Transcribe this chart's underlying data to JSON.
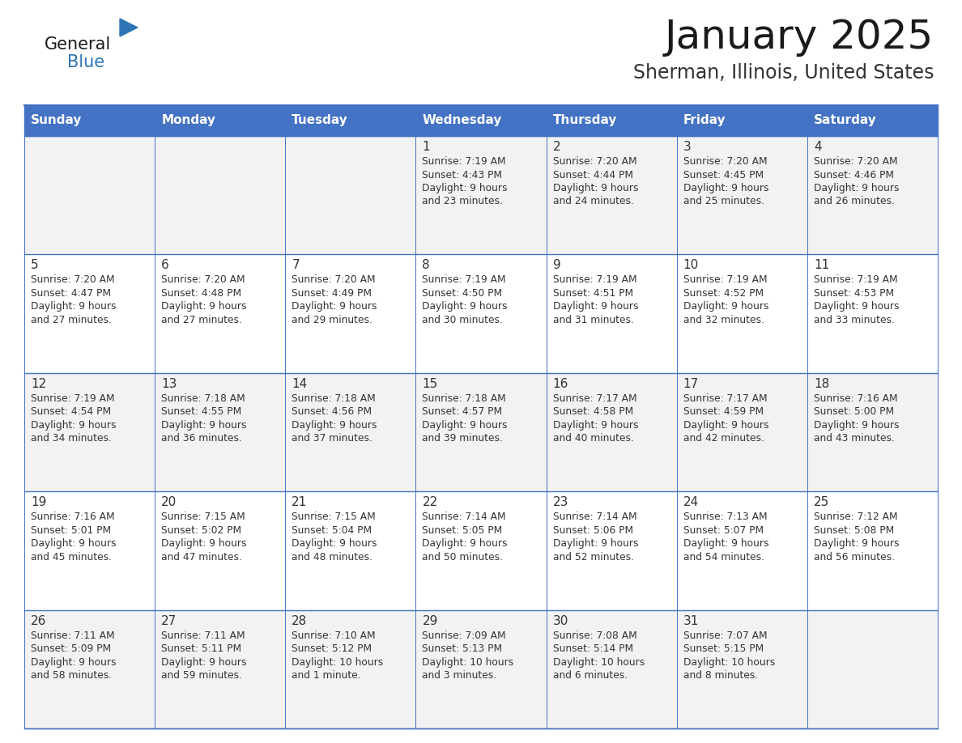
{
  "title": "January 2025",
  "subtitle": "Sherman, Illinois, United States",
  "header_bg_color": "#4472C4",
  "header_text_color": "#FFFFFF",
  "cell_bg_even": "#F2F2F2",
  "cell_bg_odd": "#FFFFFF",
  "day_headers": [
    "Sunday",
    "Monday",
    "Tuesday",
    "Wednesday",
    "Thursday",
    "Friday",
    "Saturday"
  ],
  "title_color": "#1a1a1a",
  "subtitle_color": "#333333",
  "day_num_color": "#333333",
  "cell_text_color": "#333333",
  "line_color": "#4472C4",
  "logo_black": "#1a1a1a",
  "logo_blue": "#2E75B6",
  "weeks": [
    [
      {
        "date": "",
        "sunrise": "",
        "sunset": "",
        "daylight1": "",
        "daylight2": ""
      },
      {
        "date": "",
        "sunrise": "",
        "sunset": "",
        "daylight1": "",
        "daylight2": ""
      },
      {
        "date": "",
        "sunrise": "",
        "sunset": "",
        "daylight1": "",
        "daylight2": ""
      },
      {
        "date": "1",
        "sunrise": "Sunrise: 7:19 AM",
        "sunset": "Sunset: 4:43 PM",
        "daylight1": "Daylight: 9 hours",
        "daylight2": "and 23 minutes."
      },
      {
        "date": "2",
        "sunrise": "Sunrise: 7:20 AM",
        "sunset": "Sunset: 4:44 PM",
        "daylight1": "Daylight: 9 hours",
        "daylight2": "and 24 minutes."
      },
      {
        "date": "3",
        "sunrise": "Sunrise: 7:20 AM",
        "sunset": "Sunset: 4:45 PM",
        "daylight1": "Daylight: 9 hours",
        "daylight2": "and 25 minutes."
      },
      {
        "date": "4",
        "sunrise": "Sunrise: 7:20 AM",
        "sunset": "Sunset: 4:46 PM",
        "daylight1": "Daylight: 9 hours",
        "daylight2": "and 26 minutes."
      }
    ],
    [
      {
        "date": "5",
        "sunrise": "Sunrise: 7:20 AM",
        "sunset": "Sunset: 4:47 PM",
        "daylight1": "Daylight: 9 hours",
        "daylight2": "and 27 minutes."
      },
      {
        "date": "6",
        "sunrise": "Sunrise: 7:20 AM",
        "sunset": "Sunset: 4:48 PM",
        "daylight1": "Daylight: 9 hours",
        "daylight2": "and 27 minutes."
      },
      {
        "date": "7",
        "sunrise": "Sunrise: 7:20 AM",
        "sunset": "Sunset: 4:49 PM",
        "daylight1": "Daylight: 9 hours",
        "daylight2": "and 29 minutes."
      },
      {
        "date": "8",
        "sunrise": "Sunrise: 7:19 AM",
        "sunset": "Sunset: 4:50 PM",
        "daylight1": "Daylight: 9 hours",
        "daylight2": "and 30 minutes."
      },
      {
        "date": "9",
        "sunrise": "Sunrise: 7:19 AM",
        "sunset": "Sunset: 4:51 PM",
        "daylight1": "Daylight: 9 hours",
        "daylight2": "and 31 minutes."
      },
      {
        "date": "10",
        "sunrise": "Sunrise: 7:19 AM",
        "sunset": "Sunset: 4:52 PM",
        "daylight1": "Daylight: 9 hours",
        "daylight2": "and 32 minutes."
      },
      {
        "date": "11",
        "sunrise": "Sunrise: 7:19 AM",
        "sunset": "Sunset: 4:53 PM",
        "daylight1": "Daylight: 9 hours",
        "daylight2": "and 33 minutes."
      }
    ],
    [
      {
        "date": "12",
        "sunrise": "Sunrise: 7:19 AM",
        "sunset": "Sunset: 4:54 PM",
        "daylight1": "Daylight: 9 hours",
        "daylight2": "and 34 minutes."
      },
      {
        "date": "13",
        "sunrise": "Sunrise: 7:18 AM",
        "sunset": "Sunset: 4:55 PM",
        "daylight1": "Daylight: 9 hours",
        "daylight2": "and 36 minutes."
      },
      {
        "date": "14",
        "sunrise": "Sunrise: 7:18 AM",
        "sunset": "Sunset: 4:56 PM",
        "daylight1": "Daylight: 9 hours",
        "daylight2": "and 37 minutes."
      },
      {
        "date": "15",
        "sunrise": "Sunrise: 7:18 AM",
        "sunset": "Sunset: 4:57 PM",
        "daylight1": "Daylight: 9 hours",
        "daylight2": "and 39 minutes."
      },
      {
        "date": "16",
        "sunrise": "Sunrise: 7:17 AM",
        "sunset": "Sunset: 4:58 PM",
        "daylight1": "Daylight: 9 hours",
        "daylight2": "and 40 minutes."
      },
      {
        "date": "17",
        "sunrise": "Sunrise: 7:17 AM",
        "sunset": "Sunset: 4:59 PM",
        "daylight1": "Daylight: 9 hours",
        "daylight2": "and 42 minutes."
      },
      {
        "date": "18",
        "sunrise": "Sunrise: 7:16 AM",
        "sunset": "Sunset: 5:00 PM",
        "daylight1": "Daylight: 9 hours",
        "daylight2": "and 43 minutes."
      }
    ],
    [
      {
        "date": "19",
        "sunrise": "Sunrise: 7:16 AM",
        "sunset": "Sunset: 5:01 PM",
        "daylight1": "Daylight: 9 hours",
        "daylight2": "and 45 minutes."
      },
      {
        "date": "20",
        "sunrise": "Sunrise: 7:15 AM",
        "sunset": "Sunset: 5:02 PM",
        "daylight1": "Daylight: 9 hours",
        "daylight2": "and 47 minutes."
      },
      {
        "date": "21",
        "sunrise": "Sunrise: 7:15 AM",
        "sunset": "Sunset: 5:04 PM",
        "daylight1": "Daylight: 9 hours",
        "daylight2": "and 48 minutes."
      },
      {
        "date": "22",
        "sunrise": "Sunrise: 7:14 AM",
        "sunset": "Sunset: 5:05 PM",
        "daylight1": "Daylight: 9 hours",
        "daylight2": "and 50 minutes."
      },
      {
        "date": "23",
        "sunrise": "Sunrise: 7:14 AM",
        "sunset": "Sunset: 5:06 PM",
        "daylight1": "Daylight: 9 hours",
        "daylight2": "and 52 minutes."
      },
      {
        "date": "24",
        "sunrise": "Sunrise: 7:13 AM",
        "sunset": "Sunset: 5:07 PM",
        "daylight1": "Daylight: 9 hours",
        "daylight2": "and 54 minutes."
      },
      {
        "date": "25",
        "sunrise": "Sunrise: 7:12 AM",
        "sunset": "Sunset: 5:08 PM",
        "daylight1": "Daylight: 9 hours",
        "daylight2": "and 56 minutes."
      }
    ],
    [
      {
        "date": "26",
        "sunrise": "Sunrise: 7:11 AM",
        "sunset": "Sunset: 5:09 PM",
        "daylight1": "Daylight: 9 hours",
        "daylight2": "and 58 minutes."
      },
      {
        "date": "27",
        "sunrise": "Sunrise: 7:11 AM",
        "sunset": "Sunset: 5:11 PM",
        "daylight1": "Daylight: 9 hours",
        "daylight2": "and 59 minutes."
      },
      {
        "date": "28",
        "sunrise": "Sunrise: 7:10 AM",
        "sunset": "Sunset: 5:12 PM",
        "daylight1": "Daylight: 10 hours",
        "daylight2": "and 1 minute."
      },
      {
        "date": "29",
        "sunrise": "Sunrise: 7:09 AM",
        "sunset": "Sunset: 5:13 PM",
        "daylight1": "Daylight: 10 hours",
        "daylight2": "and 3 minutes."
      },
      {
        "date": "30",
        "sunrise": "Sunrise: 7:08 AM",
        "sunset": "Sunset: 5:14 PM",
        "daylight1": "Daylight: 10 hours",
        "daylight2": "and 6 minutes."
      },
      {
        "date": "31",
        "sunrise": "Sunrise: 7:07 AM",
        "sunset": "Sunset: 5:15 PM",
        "daylight1": "Daylight: 10 hours",
        "daylight2": "and 8 minutes."
      },
      {
        "date": "",
        "sunrise": "",
        "sunset": "",
        "daylight1": "",
        "daylight2": ""
      }
    ]
  ]
}
